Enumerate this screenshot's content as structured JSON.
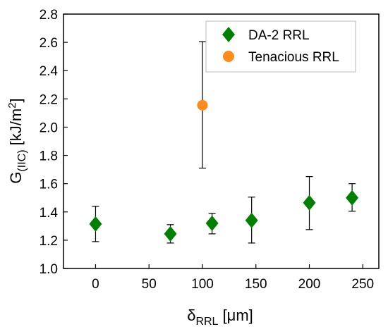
{
  "chart_data": {
    "type": "scatter",
    "title": "",
    "xlabel": {
      "symbol": "δ",
      "sub": "RRL",
      "unit": " [μm]"
    },
    "ylabel": {
      "symbol": "G",
      "sub": "(IIC)",
      "unit": " [kJ/m",
      "sup": "2",
      "close": "]"
    },
    "xlim": [
      -30,
      265
    ],
    "ylim": [
      1.0,
      2.8
    ],
    "xticks": [
      0,
      50,
      100,
      150,
      200,
      250
    ],
    "yticks": [
      1.0,
      1.2,
      1.4,
      1.6,
      1.8,
      2.0,
      2.2,
      2.4,
      2.6,
      2.8
    ],
    "ytick_labels": [
      "1.0",
      "1.2",
      "1.4",
      "1.6",
      "1.8",
      "2.0",
      "2.2",
      "2.4",
      "2.6",
      "2.8"
    ],
    "grid": false,
    "legend_position": "top-right",
    "series": [
      {
        "name": "DA-2 RRL",
        "marker": "diamond",
        "color": "#008000",
        "points": [
          {
            "x": 0,
            "y": 1.315,
            "err_low": 1.19,
            "err_high": 1.44
          },
          {
            "x": 70,
            "y": 1.245,
            "err_low": 1.18,
            "err_high": 1.31
          },
          {
            "x": 109,
            "y": 1.32,
            "err_low": 1.245,
            "err_high": 1.39
          },
          {
            "x": 146,
            "y": 1.34,
            "err_low": 1.18,
            "err_high": 1.505
          },
          {
            "x": 200,
            "y": 1.465,
            "err_low": 1.275,
            "err_high": 1.65
          },
          {
            "x": 240,
            "y": 1.5,
            "err_low": 1.405,
            "err_high": 1.6
          }
        ]
      },
      {
        "name": "Tenacious RRL",
        "marker": "circle",
        "color": "#FF8C1A",
        "points": [
          {
            "x": 100,
            "y": 2.155,
            "err_low": 1.71,
            "err_high": 2.605
          }
        ]
      }
    ]
  }
}
